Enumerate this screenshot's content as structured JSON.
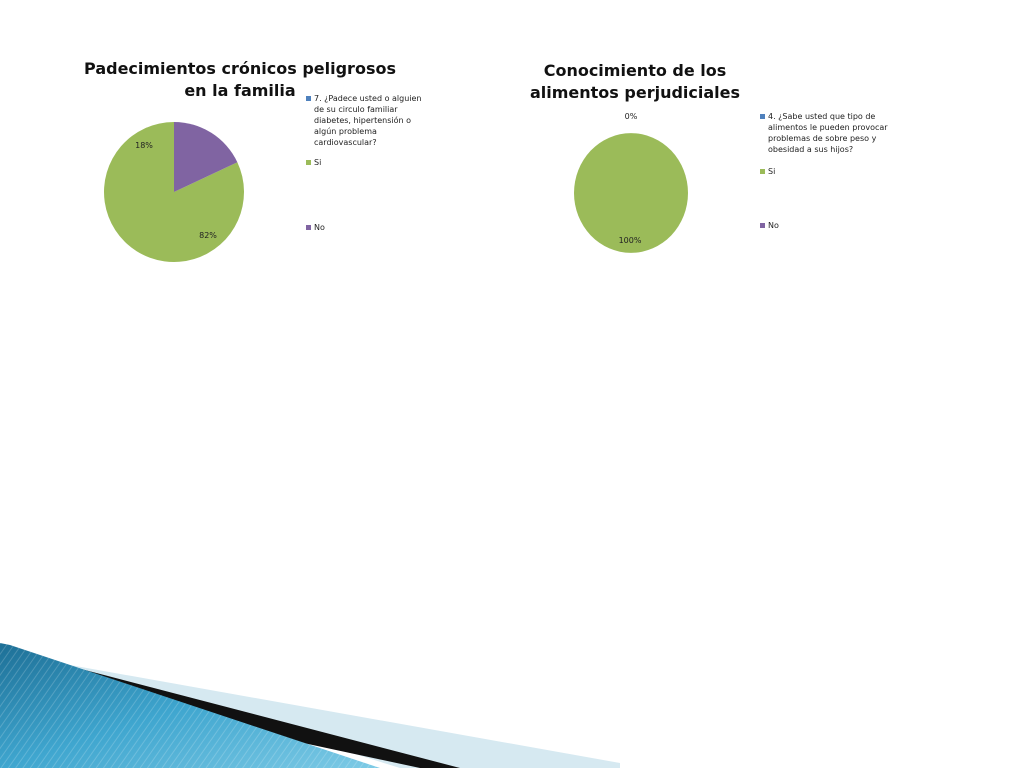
{
  "colors": {
    "blue": "#4F81BD",
    "green": "#9BBB59",
    "purple": "#8064A2"
  },
  "chart_data": [
    {
      "type": "pie",
      "title": "Padecimientos crónicos peligrosos en la familia",
      "categories": [
        "7. ¿Padece usted o alguien de su circulo familiar diabetes, hipertensión o algún problema cardiovascular?",
        "Si",
        "No"
      ],
      "values": [
        0,
        82,
        18
      ],
      "data_labels": [
        "",
        "82%",
        "18%"
      ],
      "legend_position": "right"
    },
    {
      "type": "pie",
      "title": "Conocimiento de los alimentos perjudiciales",
      "categories": [
        "4. ¿Sabe usted que tipo de alimentos le pueden provocar problemas de sobre peso y obesidad a sus hijos?",
        "Si",
        "No"
      ],
      "values": [
        0,
        100,
        0
      ],
      "data_labels": [
        "",
        "100%",
        "0%"
      ],
      "legend_position": "right"
    }
  ]
}
